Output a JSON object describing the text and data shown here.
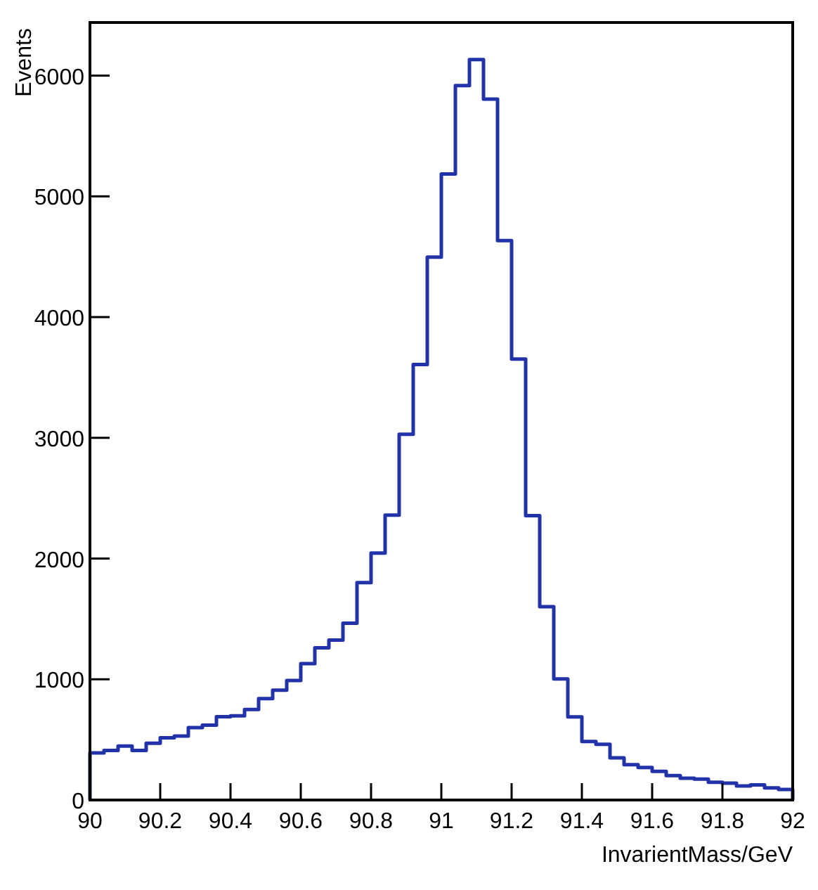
{
  "chart_data": {
    "type": "histogram",
    "xlabel": "InvarientMass/GeV",
    "ylabel": "Events",
    "color": "#2233aa",
    "bins": [
      90,
      90.04,
      90.08,
      90.12,
      90.16,
      90.2,
      90.24,
      90.28,
      90.32,
      90.36,
      90.4,
      90.44,
      90.48,
      90.52,
      90.56,
      90.6,
      90.64,
      90.68,
      90.72,
      90.76,
      90.8,
      90.84,
      90.88,
      90.92,
      90.96,
      91,
      91.04,
      91.08,
      91.12,
      91.16,
      91.2,
      91.24,
      91.28,
      91.32,
      91.36,
      91.4,
      91.44,
      91.48,
      91.52,
      91.56,
      91.6,
      91.64,
      91.68,
      91.72,
      91.76,
      91.8,
      91.84,
      91.88,
      91.92,
      91.96,
      92
    ],
    "values": [
      390,
      410,
      447,
      410,
      470,
      515,
      530,
      600,
      620,
      690,
      697,
      750,
      840,
      910,
      990,
      1130,
      1260,
      1325,
      1465,
      1800,
      2045,
      2360,
      3030,
      3607,
      4497,
      5185,
      5918,
      6133,
      5806,
      4634,
      3653,
      2356,
      1601,
      1003,
      688,
      485,
      462,
      350,
      293,
      270,
      237,
      203,
      180,
      173,
      147,
      140,
      117,
      125,
      100,
      87
    ],
    "xlim": [
      90,
      92
    ],
    "xticks": [
      90,
      90.2,
      90.4,
      90.6,
      90.8,
      91,
      91.2,
      91.4,
      91.6,
      91.8,
      92
    ],
    "ylim": [
      0,
      6440
    ],
    "yticks": [
      0,
      1000,
      2000,
      3000,
      4000,
      5000,
      6000
    ],
    "grid": false
  }
}
